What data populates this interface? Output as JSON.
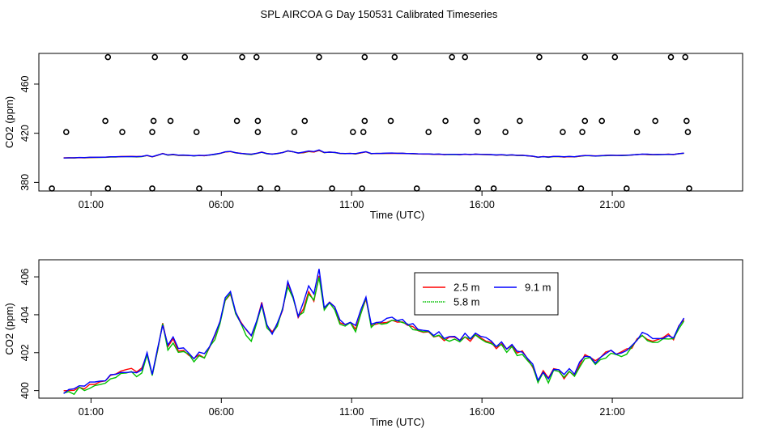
{
  "title": "SPL AIRCOA G  Day 150531  Calibrated Timeseries",
  "chart_data": [
    {
      "type": "scatter+line",
      "name": "top-panel",
      "xlabel": "Time (UTC)",
      "ylabel": "CO2 (ppm)",
      "xlim": [
        -1,
        26
      ],
      "ylim": [
        373,
        485
      ],
      "xticks": [
        {
          "v": 1,
          "label": "01:00"
        },
        {
          "v": 6,
          "label": "06:00"
        },
        {
          "v": 11,
          "label": "11:00"
        },
        {
          "v": 16,
          "label": "16:00"
        },
        {
          "v": 21,
          "label": "21:00"
        }
      ],
      "yticks": [
        380,
        420,
        460
      ],
      "reference_points": [
        {
          "x": 1.65,
          "y": 482
        },
        {
          "x": 3.45,
          "y": 482
        },
        {
          "x": 4.6,
          "y": 482
        },
        {
          "x": 6.8,
          "y": 482
        },
        {
          "x": 7.35,
          "y": 482
        },
        {
          "x": 9.75,
          "y": 482
        },
        {
          "x": 11.5,
          "y": 482
        },
        {
          "x": 12.65,
          "y": 482
        },
        {
          "x": 14.85,
          "y": 482
        },
        {
          "x": 15.35,
          "y": 482
        },
        {
          "x": 18.2,
          "y": 482
        },
        {
          "x": 19.95,
          "y": 482
        },
        {
          "x": 21.1,
          "y": 482
        },
        {
          "x": 23.25,
          "y": 482
        },
        {
          "x": 23.8,
          "y": 482
        },
        {
          "x": 1.55,
          "y": 430
        },
        {
          "x": 3.4,
          "y": 430
        },
        {
          "x": 4.05,
          "y": 430
        },
        {
          "x": 6.6,
          "y": 430
        },
        {
          "x": 7.4,
          "y": 430
        },
        {
          "x": 9.2,
          "y": 430
        },
        {
          "x": 11.5,
          "y": 430
        },
        {
          "x": 12.5,
          "y": 430
        },
        {
          "x": 14.6,
          "y": 430
        },
        {
          "x": 15.8,
          "y": 430
        },
        {
          "x": 17.45,
          "y": 430
        },
        {
          "x": 19.95,
          "y": 430
        },
        {
          "x": 20.6,
          "y": 430
        },
        {
          "x": 22.65,
          "y": 430
        },
        {
          "x": 23.85,
          "y": 430
        },
        {
          "x": 0.05,
          "y": 421
        },
        {
          "x": 2.2,
          "y": 421
        },
        {
          "x": 3.35,
          "y": 421
        },
        {
          "x": 5.05,
          "y": 421
        },
        {
          "x": 7.4,
          "y": 421
        },
        {
          "x": 8.8,
          "y": 421
        },
        {
          "x": 11.05,
          "y": 421
        },
        {
          "x": 11.45,
          "y": 421
        },
        {
          "x": 13.95,
          "y": 421
        },
        {
          "x": 15.85,
          "y": 421
        },
        {
          "x": 16.9,
          "y": 421
        },
        {
          "x": 19.1,
          "y": 421
        },
        {
          "x": 19.85,
          "y": 421
        },
        {
          "x": 21.95,
          "y": 421
        },
        {
          "x": 23.9,
          "y": 421
        },
        {
          "x": -0.5,
          "y": 375
        },
        {
          "x": 1.65,
          "y": 375
        },
        {
          "x": 3.35,
          "y": 375
        },
        {
          "x": 5.15,
          "y": 375
        },
        {
          "x": 7.5,
          "y": 375
        },
        {
          "x": 8.15,
          "y": 375
        },
        {
          "x": 10.25,
          "y": 375
        },
        {
          "x": 11.4,
          "y": 375
        },
        {
          "x": 13.5,
          "y": 375
        },
        {
          "x": 15.85,
          "y": 375
        },
        {
          "x": 16.45,
          "y": 375
        },
        {
          "x": 18.55,
          "y": 375
        },
        {
          "x": 19.8,
          "y": 375
        },
        {
          "x": 21.55,
          "y": 375
        },
        {
          "x": 23.95,
          "y": 375
        }
      ],
      "series": [
        {
          "name": "2.5 m",
          "color": "#ff0000"
        },
        {
          "name": "5.8 m",
          "color": "#00c000"
        },
        {
          "name": "9.1 m",
          "color": "#0000ff"
        }
      ]
    },
    {
      "type": "line",
      "name": "bottom-panel",
      "xlabel": "Time (UTC)",
      "ylabel": "CO2 (ppm)",
      "xlim": [
        -1,
        26
      ],
      "ylim": [
        399.6,
        406.9
      ],
      "xticks": [
        {
          "v": 1,
          "label": "01:00"
        },
        {
          "v": 6,
          "label": "06:00"
        },
        {
          "v": 11,
          "label": "11:00"
        },
        {
          "v": 16,
          "label": "16:00"
        },
        {
          "v": 21,
          "label": "21:00"
        }
      ],
      "yticks": [
        400,
        402,
        404,
        406
      ],
      "legend_position": "top-center",
      "base_curve": {
        "x": [
          -0.05,
          0.15,
          0.35,
          0.55,
          0.75,
          0.95,
          1.15,
          1.35,
          1.55,
          1.75,
          1.95,
          2.15,
          2.35,
          2.55,
          2.75,
          2.95,
          3.15,
          3.35,
          3.55,
          3.75,
          3.95,
          4.15,
          4.35,
          4.55,
          4.75,
          4.95,
          5.15,
          5.35,
          5.55,
          5.75,
          5.95,
          6.15,
          6.35,
          6.55,
          6.75,
          6.95,
          7.15,
          7.35,
          7.55,
          7.75,
          7.95,
          8.15,
          8.35,
          8.55,
          8.75,
          8.95,
          9.15,
          9.35,
          9.55,
          9.75,
          9.95,
          10.15,
          10.35,
          10.55,
          10.75,
          10.95,
          11.15,
          11.35,
          11.55,
          11.75,
          11.95,
          12.15,
          12.35,
          12.55,
          12.75,
          12.95,
          13.15,
          13.35,
          13.55,
          13.75,
          13.95,
          14.15,
          14.35,
          14.55,
          14.75,
          14.95,
          15.15,
          15.35,
          15.55,
          15.75,
          15.95,
          16.15,
          16.35,
          16.55,
          16.75,
          16.95,
          17.15,
          17.35,
          17.55,
          17.75,
          17.95,
          18.15,
          18.35,
          18.55,
          18.75,
          18.95,
          19.15,
          19.35,
          19.55,
          19.75,
          19.95,
          20.15,
          20.35,
          20.55,
          20.75,
          20.95,
          21.15,
          21.35,
          21.55,
          21.75,
          21.95,
          22.15,
          22.35,
          22.55,
          22.75,
          22.95,
          23.15,
          23.35,
          23.55,
          23.75
        ],
        "y": [
          399.9,
          400.1,
          400.0,
          400.2,
          400.1,
          400.3,
          400.4,
          400.5,
          400.5,
          400.7,
          400.8,
          401.0,
          400.9,
          401.0,
          400.9,
          401.0,
          401.9,
          400.8,
          402.1,
          403.5,
          402.3,
          402.7,
          402.1,
          402.2,
          401.9,
          401.7,
          402.0,
          401.8,
          402.3,
          402.8,
          403.6,
          404.8,
          405.1,
          404.2,
          403.6,
          403.1,
          402.8,
          403.6,
          404.6,
          403.4,
          403.0,
          403.5,
          404.3,
          405.6,
          404.9,
          403.9,
          404.3,
          405.3,
          404.8,
          406.1,
          404.4,
          404.6,
          404.4,
          403.6,
          403.4,
          403.6,
          403.3,
          404.1,
          404.9,
          403.5,
          403.6,
          403.5,
          403.7,
          403.8,
          403.7,
          403.6,
          403.5,
          403.4,
          403.2,
          403.1,
          403.1,
          402.9,
          403.0,
          402.7,
          402.8,
          402.9,
          402.6,
          402.9,
          402.7,
          402.9,
          402.8,
          402.7,
          402.6,
          402.3,
          402.5,
          402.2,
          402.4,
          402.0,
          402.0,
          401.6,
          401.3,
          400.5,
          401.0,
          400.6,
          401.1,
          401.0,
          400.7,
          401.1,
          400.8,
          401.4,
          401.8,
          401.7,
          401.5,
          401.6,
          401.8,
          402.0,
          401.9,
          402.0,
          402.1,
          402.3,
          402.7,
          403.0,
          402.8,
          402.6,
          402.7,
          402.8,
          402.9,
          402.7,
          403.3,
          403.8
        ]
      },
      "series": [
        {
          "name": "2.5 m",
          "color": "#ff0000"
        },
        {
          "name": "5.8 m",
          "color": "#00c000"
        },
        {
          "name": "9.1 m",
          "color": "#0000ff"
        }
      ]
    }
  ]
}
